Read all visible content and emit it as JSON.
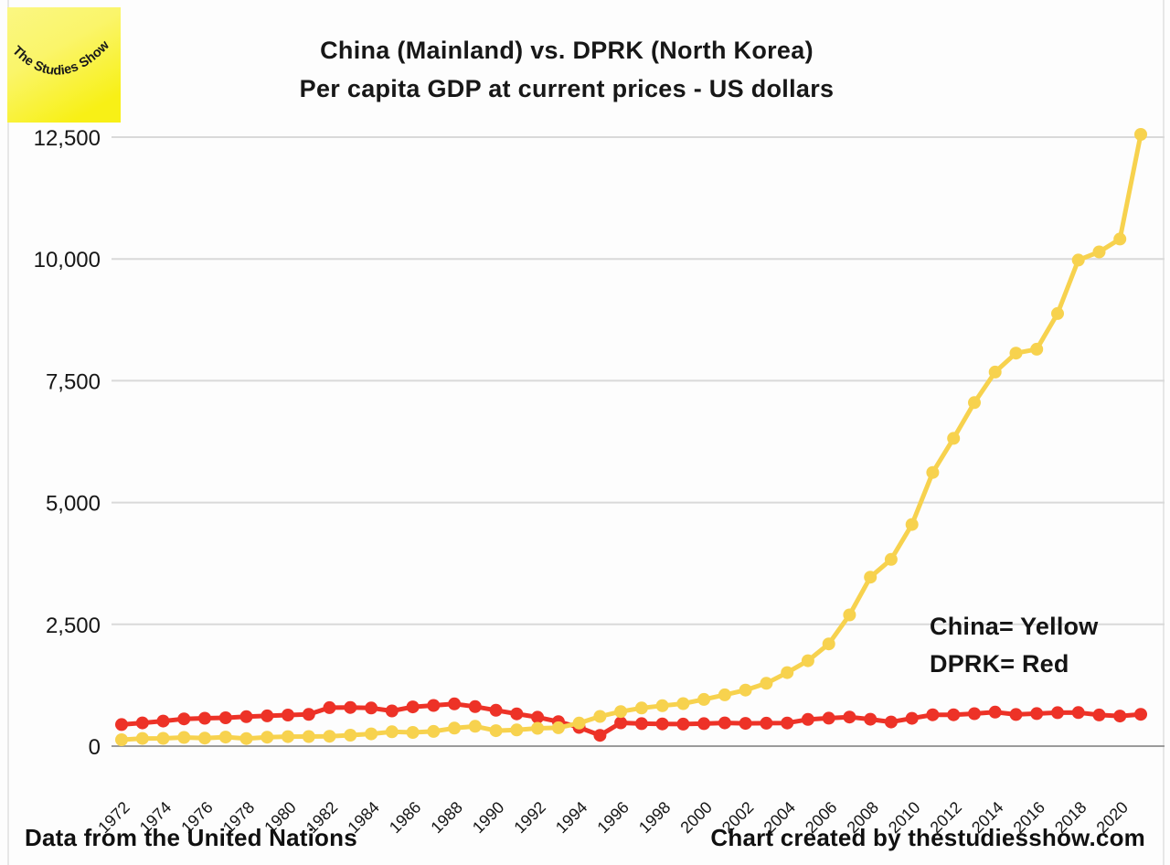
{
  "logo": {
    "text": "The Studies Show"
  },
  "header": {
    "title_line1": "China (Mainland) vs. DPRK (North Korea)",
    "title_line2": "Per capita GDP at current prices - US dollars"
  },
  "legend": {
    "china": "China= Yellow",
    "dprk": "DPRK= Red"
  },
  "footer": {
    "left": "Data from the United Nations",
    "right": "Chart created by thestudiesshow.com"
  },
  "chart_data": {
    "type": "line",
    "title": "China (Mainland) vs. DPRK (North Korea)",
    "subtitle": "Per capita GDP at current prices - US dollars",
    "x_range": [
      1972,
      2021
    ],
    "ylim": [
      0,
      12500
    ],
    "grid": true,
    "legend_position": "right-middle",
    "years": [
      1972,
      1973,
      1974,
      1975,
      1976,
      1977,
      1978,
      1979,
      1980,
      1981,
      1982,
      1983,
      1984,
      1985,
      1986,
      1987,
      1988,
      1989,
      1990,
      1991,
      1992,
      1993,
      1994,
      1995,
      1996,
      1997,
      1998,
      1999,
      2000,
      2001,
      2002,
      2003,
      2004,
      2005,
      2006,
      2007,
      2008,
      2009,
      2010,
      2011,
      2012,
      2013,
      2014,
      2015,
      2016,
      2017,
      2018,
      2019,
      2020,
      2021
    ],
    "series": [
      {
        "key": "dprk",
        "name": "DPRK (North Korea)",
        "color": "#ED3227",
        "values": [
          443,
          477,
          515,
          560,
          572,
          581,
          604,
          622,
          639,
          651,
          791,
          794,
          783,
          722,
          805,
          836,
          867,
          811,
          735,
          663,
          593,
          503,
          384,
          222,
          479,
          462,
          456,
          453,
          462,
          476,
          468,
          471,
          474,
          548,
          575,
          597,
          552,
          495,
          570,
          644,
          643,
          666,
          698,
          649,
          668,
          687,
          689,
          640,
          618,
          654
        ]
      },
      {
        "key": "china",
        "name": "China (Mainland)",
        "color": "#F7D24E",
        "values": [
          132,
          157,
          160,
          178,
          165,
          185,
          156,
          184,
          195,
          197,
          203,
          225,
          251,
          294,
          282,
          302,
          370,
          407,
          318,
          333,
          366,
          377,
          473,
          610,
          709,
          782,
          829,
          873,
          959,
          1053,
          1150,
          1289,
          1509,
          1753,
          2099,
          2694,
          3468,
          3832,
          4550,
          5618,
          6317,
          7051,
          7679,
          8067,
          8148,
          8879,
          9977,
          10144,
          10409,
          12556
        ]
      }
    ],
    "y_axis": {
      "ticks": [
        {
          "value": 0,
          "label": "0"
        },
        {
          "value": 2500,
          "label": "2,500"
        },
        {
          "value": 5000,
          "label": "5,000"
        },
        {
          "value": 7500,
          "label": "7,500"
        },
        {
          "value": 10000,
          "label": "10,000"
        },
        {
          "value": 12500,
          "label": "12,500"
        }
      ]
    },
    "x_axis": {
      "ticks": [
        {
          "value": 1972,
          "label": "1972"
        },
        {
          "value": 1974,
          "label": "1974"
        },
        {
          "value": 1976,
          "label": "1976"
        },
        {
          "value": 1978,
          "label": "1978"
        },
        {
          "value": 1980,
          "label": "1980"
        },
        {
          "value": 1982,
          "label": "1982"
        },
        {
          "value": 1984,
          "label": "1984"
        },
        {
          "value": 1986,
          "label": "1986"
        },
        {
          "value": 1988,
          "label": "1988"
        },
        {
          "value": 1990,
          "label": "1990"
        },
        {
          "value": 1992,
          "label": "1992"
        },
        {
          "value": 1994,
          "label": "1994"
        },
        {
          "value": 1996,
          "label": "1996"
        },
        {
          "value": 1998,
          "label": "1998"
        },
        {
          "value": 2000,
          "label": "2000"
        },
        {
          "value": 2002,
          "label": "2002"
        },
        {
          "value": 2004,
          "label": "2004"
        },
        {
          "value": 2006,
          "label": "2006"
        },
        {
          "value": 2008,
          "label": "2008"
        },
        {
          "value": 2010,
          "label": "2010"
        },
        {
          "value": 2012,
          "label": "2012"
        },
        {
          "value": 2014,
          "label": "2014"
        },
        {
          "value": 2016,
          "label": "2016"
        },
        {
          "value": 2018,
          "label": "2018"
        },
        {
          "value": 2020,
          "label": "2020"
        }
      ]
    },
    "colors": {
      "grid": "#D9D9D9",
      "axis": "#9B9B9B",
      "text": "#161616",
      "logo_yellow_light": "#FBF782",
      "logo_yellow_deep": "#F8F016"
    }
  }
}
